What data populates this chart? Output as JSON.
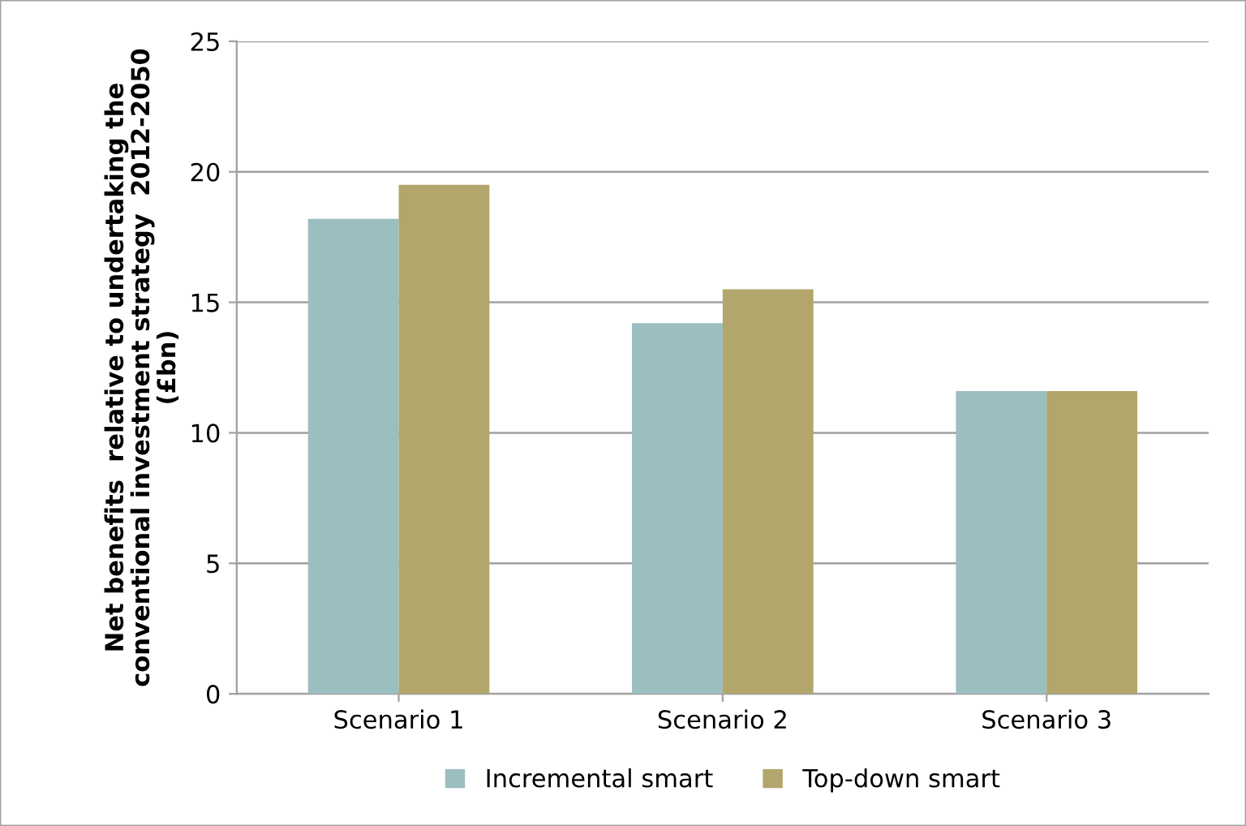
{
  "chart_data": {
    "type": "bar",
    "ylabel": "Net benefits  relative to undertaking the\nconventional investment strategy  2012-2050\n(£bn)",
    "categories": [
      "Scenario 1",
      "Scenario 2",
      "Scenario 3"
    ],
    "series": [
      {
        "name": "Incremental smart",
        "color": "#9bbec1",
        "values": [
          18.2,
          14.2,
          11.6
        ]
      },
      {
        "name": "Top-down smart",
        "color": "#b2a66c",
        "values": [
          19.5,
          15.5,
          11.6
        ]
      }
    ],
    "ylim": [
      0,
      25
    ],
    "yticks": [
      0,
      5,
      10,
      15,
      20,
      25
    ],
    "grid": "y",
    "legend": "bottom"
  }
}
